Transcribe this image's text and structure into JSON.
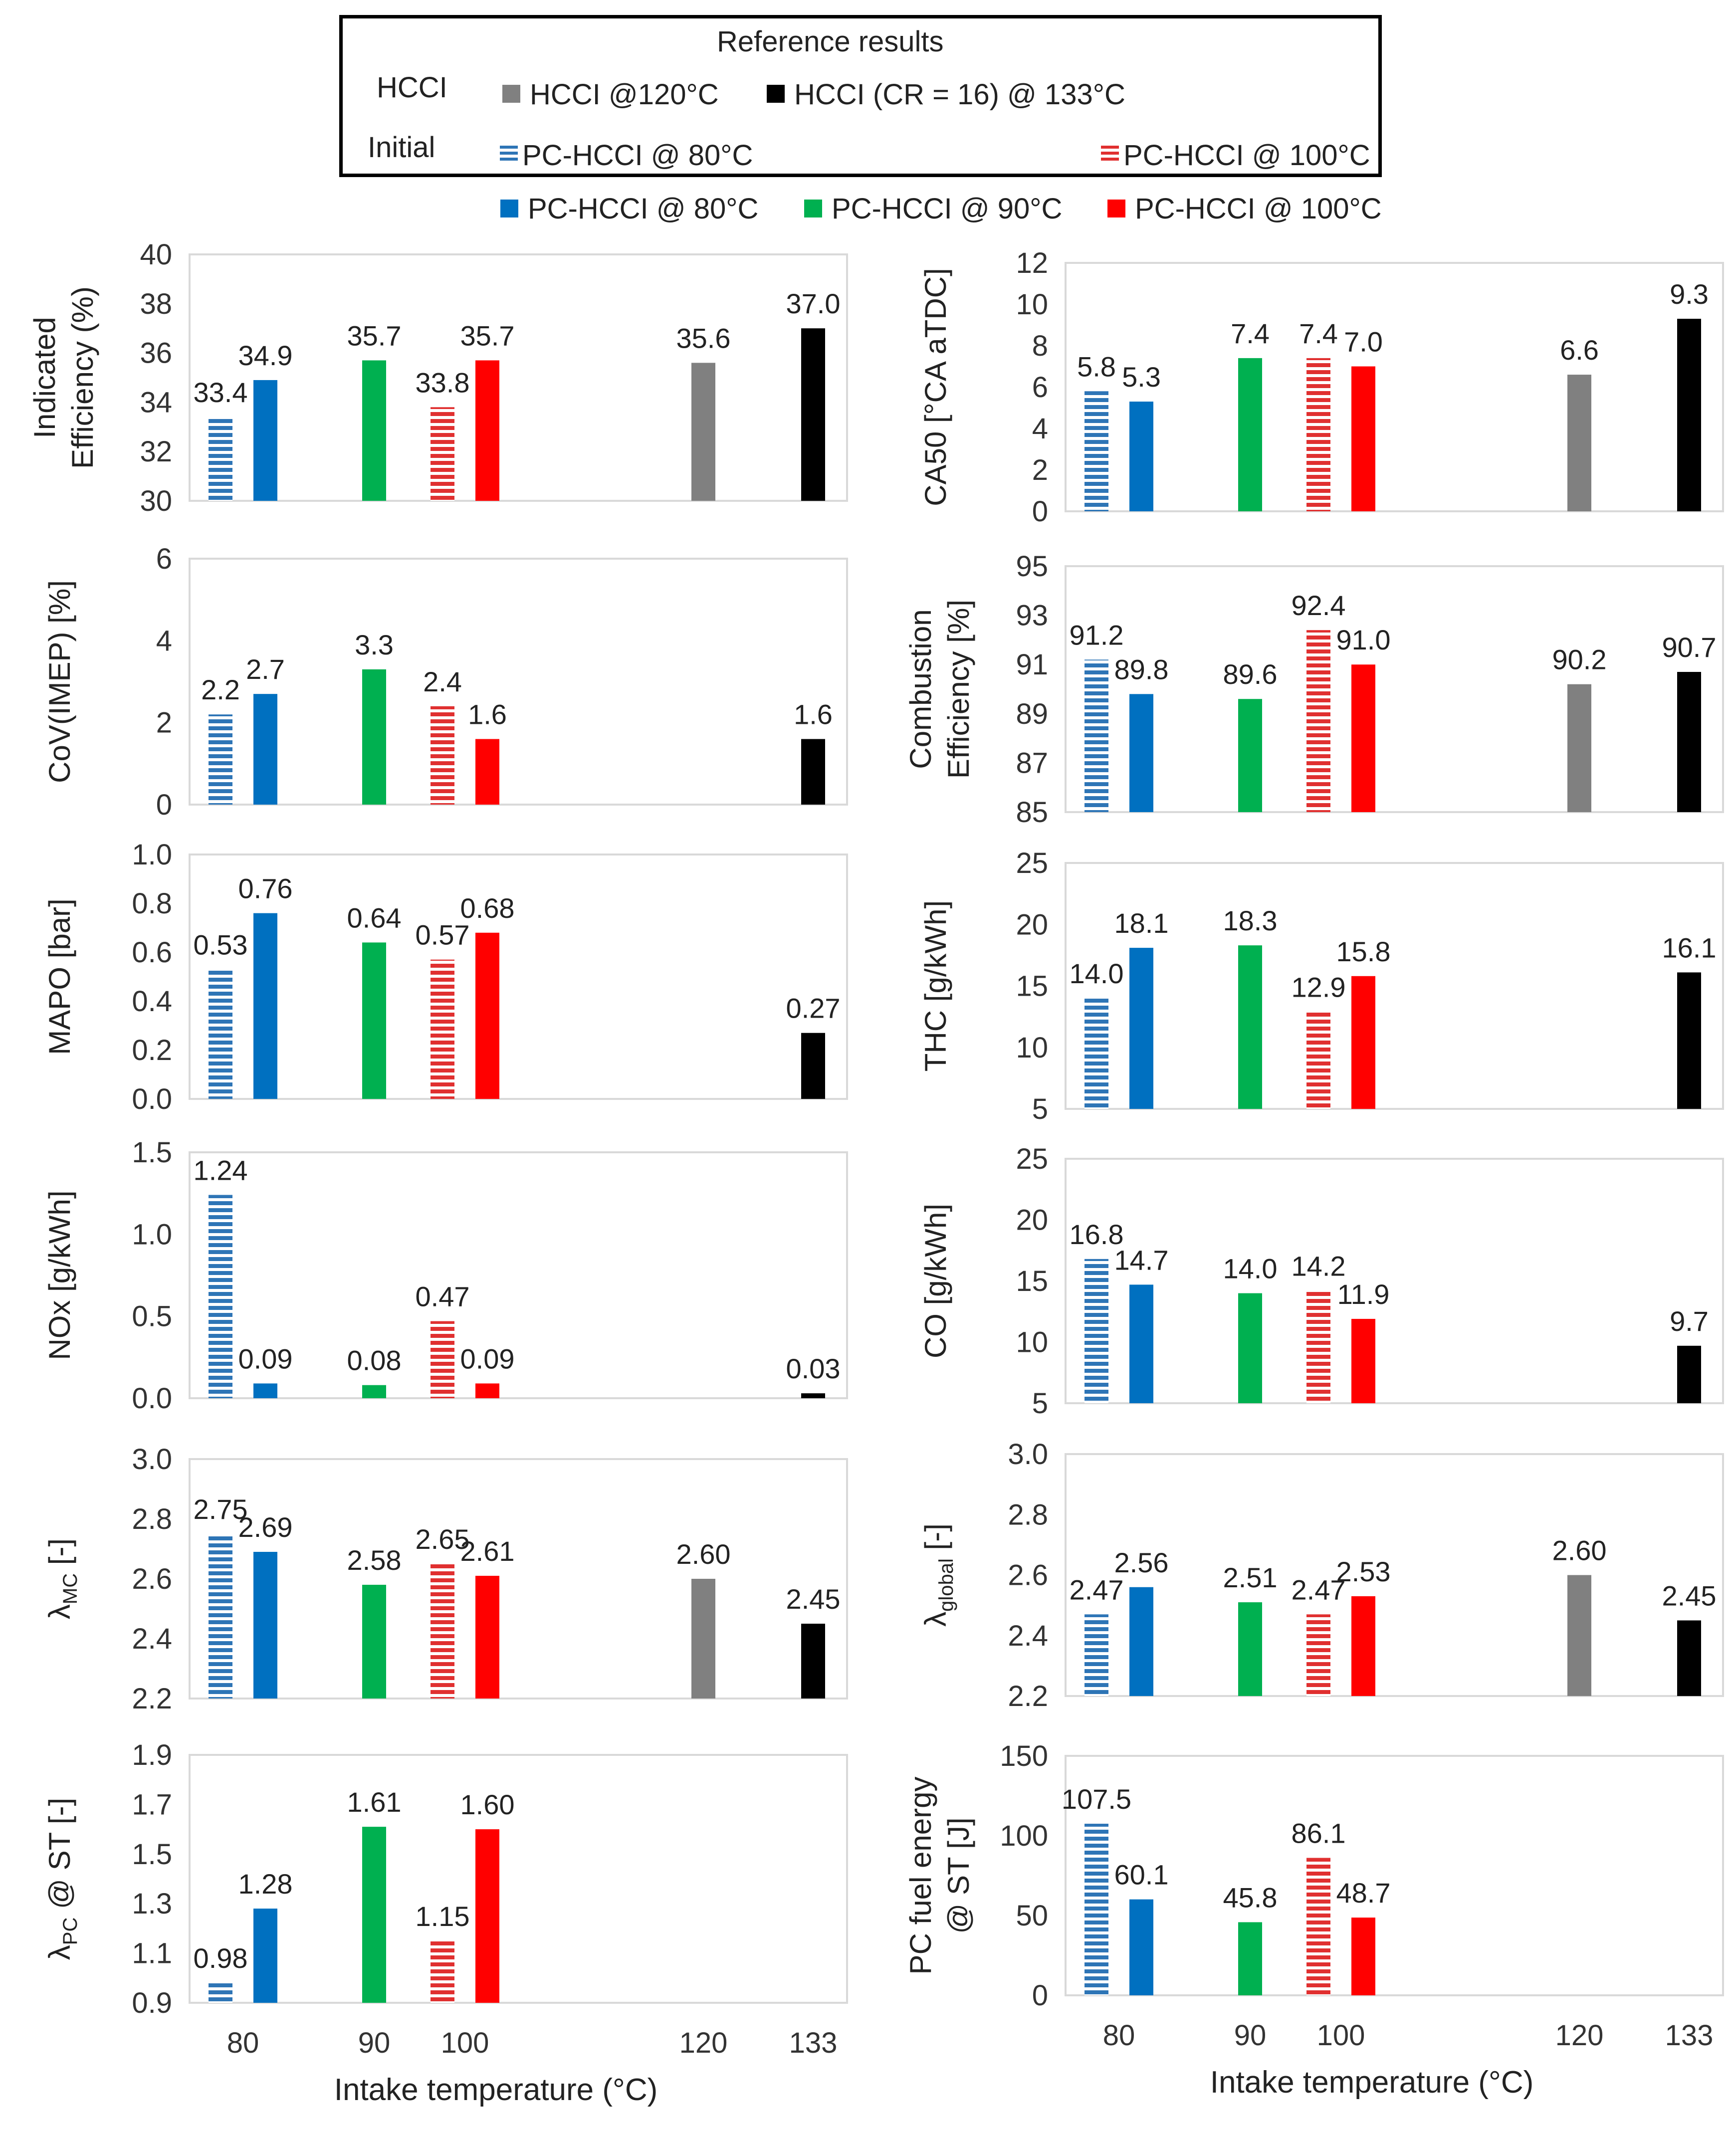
{
  "legend": {
    "title": "Reference results",
    "hcci_row_label": "HCCI",
    "initial_row_label": "Initial",
    "hcci_120": "HCCI @120°C",
    "hcci_133": "HCCI (CR = 16) @ 133°C",
    "init_80": "PC-HCCI @ 80°C",
    "init_100": "PC-HCCI @ 100°C",
    "pc_80": "PC-HCCI @ 80°C",
    "pc_90": "PC-HCCI @ 90°C",
    "pc_100": "PC-HCCI @ 100°C"
  },
  "colors": {
    "init80": "#2e75b6",
    "pc80": "#0070c0",
    "pc90": "#00b050",
    "init100": "#e03030",
    "pc100": "#ff0000",
    "hcci120": "#808080",
    "hcci133": "#000000",
    "axis": "#d9d9d9",
    "text": "#404040"
  },
  "x_axis": {
    "label": "Intake temperature (°C)",
    "ticks": [
      "80",
      "90",
      "100",
      "120",
      "133"
    ],
    "tick_values": [
      80,
      90,
      100,
      120,
      133
    ]
  },
  "chart_data": [
    {
      "type": "bar",
      "id": "eff",
      "ylabel": [
        "Indicated",
        "Efficiency (%)"
      ],
      "ylim": [
        30,
        40
      ],
      "yticks": [
        "30",
        "32",
        "34",
        "36",
        "38",
        "40"
      ],
      "bars": [
        {
          "series": "init80",
          "x": 80,
          "value": 33.4,
          "label": "33.4"
        },
        {
          "series": "pc80",
          "x": 80,
          "value": 34.9,
          "label": "34.9"
        },
        {
          "series": "pc90",
          "x": 90,
          "value": 35.7,
          "label": "35.7"
        },
        {
          "series": "init100",
          "x": 100,
          "value": 33.8,
          "label": "33.8"
        },
        {
          "series": "pc100",
          "x": 100,
          "value": 35.7,
          "label": "35.7"
        },
        {
          "series": "hcci120",
          "x": 120,
          "value": 35.6,
          "label": "35.6"
        },
        {
          "series": "hcci133",
          "x": 133,
          "value": 37.0,
          "label": "37.0"
        }
      ]
    },
    {
      "type": "bar",
      "id": "ca50",
      "ylabel": [
        "CA50 [°CA aTDC]"
      ],
      "ylim": [
        0,
        12
      ],
      "yticks": [
        "0",
        "2",
        "4",
        "6",
        "8",
        "10",
        "12"
      ],
      "bars": [
        {
          "series": "init80",
          "x": 80,
          "value": 5.8,
          "label": "5.8"
        },
        {
          "series": "pc80",
          "x": 80,
          "value": 5.3,
          "label": "5.3"
        },
        {
          "series": "pc90",
          "x": 90,
          "value": 7.4,
          "label": "7.4"
        },
        {
          "series": "init100",
          "x": 100,
          "value": 7.4,
          "label": "7.4"
        },
        {
          "series": "pc100",
          "x": 100,
          "value": 7.0,
          "label": "7.0"
        },
        {
          "series": "hcci120",
          "x": 120,
          "value": 6.6,
          "label": "6.6"
        },
        {
          "series": "hcci133",
          "x": 133,
          "value": 9.3,
          "label": "9.3"
        }
      ]
    },
    {
      "type": "bar",
      "id": "cov",
      "ylabel": [
        "CoV(IMEP) [%]"
      ],
      "ylim": [
        0,
        6
      ],
      "yticks": [
        "0",
        "2",
        "4",
        "6"
      ],
      "bars": [
        {
          "series": "init80",
          "x": 80,
          "value": 2.2,
          "label": "2.2"
        },
        {
          "series": "pc80",
          "x": 80,
          "value": 2.7,
          "label": "2.7"
        },
        {
          "series": "pc90",
          "x": 90,
          "value": 3.3,
          "label": "3.3"
        },
        {
          "series": "init100",
          "x": 100,
          "value": 2.4,
          "label": "2.4"
        },
        {
          "series": "pc100",
          "x": 100,
          "value": 1.6,
          "label": "1.6"
        },
        {
          "series": "hcci133",
          "x": 133,
          "value": 1.6,
          "label": "1.6"
        }
      ]
    },
    {
      "type": "bar",
      "id": "comb",
      "ylabel": [
        "Combustion",
        "Efficiency [%]"
      ],
      "ylim": [
        85,
        95
      ],
      "yticks": [
        "85",
        "87",
        "89",
        "91",
        "93",
        "95"
      ],
      "bars": [
        {
          "series": "init80",
          "x": 80,
          "value": 91.2,
          "label": "91.2"
        },
        {
          "series": "pc80",
          "x": 80,
          "value": 89.8,
          "label": "89.8"
        },
        {
          "series": "pc90",
          "x": 90,
          "value": 89.6,
          "label": "89.6"
        },
        {
          "series": "init100",
          "x": 100,
          "value": 92.4,
          "label": "92.4"
        },
        {
          "series": "pc100",
          "x": 100,
          "value": 91.0,
          "label": "91.0"
        },
        {
          "series": "hcci120",
          "x": 120,
          "value": 90.2,
          "label": "90.2"
        },
        {
          "series": "hcci133",
          "x": 133,
          "value": 90.7,
          "label": "90.7"
        }
      ]
    },
    {
      "type": "bar",
      "id": "mapo",
      "ylabel": [
        "MAPO [bar]"
      ],
      "ylim": [
        0,
        1
      ],
      "yticks": [
        "0.0",
        "0.2",
        "0.4",
        "0.6",
        "0.8",
        "1.0"
      ],
      "bars": [
        {
          "series": "init80",
          "x": 80,
          "value": 0.53,
          "label": "0.53"
        },
        {
          "series": "pc80",
          "x": 80,
          "value": 0.76,
          "label": "0.76"
        },
        {
          "series": "pc90",
          "x": 90,
          "value": 0.64,
          "label": "0.64"
        },
        {
          "series": "init100",
          "x": 100,
          "value": 0.57,
          "label": "0.57"
        },
        {
          "series": "pc100",
          "x": 100,
          "value": 0.68,
          "label": "0.68"
        },
        {
          "series": "hcci133",
          "x": 133,
          "value": 0.27,
          "label": "0.27"
        }
      ]
    },
    {
      "type": "bar",
      "id": "thc",
      "ylabel": [
        "THC [g/kWh]"
      ],
      "ylim": [
        5,
        25
      ],
      "yticks": [
        "5",
        "10",
        "15",
        "20",
        "25"
      ],
      "bars": [
        {
          "series": "init80",
          "x": 80,
          "value": 14.0,
          "label": "14.0"
        },
        {
          "series": "pc80",
          "x": 80,
          "value": 18.1,
          "label": "18.1"
        },
        {
          "series": "pc90",
          "x": 90,
          "value": 18.3,
          "label": "18.3"
        },
        {
          "series": "init100",
          "x": 100,
          "value": 12.9,
          "label": "12.9"
        },
        {
          "series": "pc100",
          "x": 100,
          "value": 15.8,
          "label": "15.8"
        },
        {
          "series": "hcci133",
          "x": 133,
          "value": 16.1,
          "label": "16.1"
        }
      ]
    },
    {
      "type": "bar",
      "id": "nox",
      "ylabel": [
        "NOx [g/kWh]"
      ],
      "ylim": [
        0,
        1.5
      ],
      "yticks": [
        "0.0",
        "0.5",
        "1.0",
        "1.5"
      ],
      "bars": [
        {
          "series": "init80",
          "x": 80,
          "value": 1.24,
          "label": "1.24"
        },
        {
          "series": "pc80",
          "x": 80,
          "value": 0.09,
          "label": "0.09"
        },
        {
          "series": "pc90",
          "x": 90,
          "value": 0.08,
          "label": "0.08"
        },
        {
          "series": "init100",
          "x": 100,
          "value": 0.47,
          "label": "0.47"
        },
        {
          "series": "pc100",
          "x": 100,
          "value": 0.09,
          "label": "0.09"
        },
        {
          "series": "hcci133",
          "x": 133,
          "value": 0.03,
          "label": "0.03"
        }
      ]
    },
    {
      "type": "bar",
      "id": "co",
      "ylabel": [
        "CO [g/kWh]"
      ],
      "ylim": [
        5,
        25
      ],
      "yticks": [
        "5",
        "10",
        "15",
        "20",
        "25"
      ],
      "bars": [
        {
          "series": "init80",
          "x": 80,
          "value": 16.8,
          "label": "16.8"
        },
        {
          "series": "pc80",
          "x": 80,
          "value": 14.7,
          "label": "14.7"
        },
        {
          "series": "pc90",
          "x": 90,
          "value": 14.0,
          "label": "14.0"
        },
        {
          "series": "init100",
          "x": 100,
          "value": 14.2,
          "label": "14.2"
        },
        {
          "series": "pc100",
          "x": 100,
          "value": 11.9,
          "label": "11.9"
        },
        {
          "series": "hcci133",
          "x": 133,
          "value": 9.7,
          "label": "9.7"
        }
      ]
    },
    {
      "type": "bar",
      "id": "lmc",
      "ylabel": [
        "λ",
        "MC",
        " [-]"
      ],
      "ylim": [
        2.2,
        3.0
      ],
      "yticks": [
        "2.2",
        "2.4",
        "2.6",
        "2.8",
        "3.0"
      ],
      "bars": [
        {
          "series": "init80",
          "x": 80,
          "value": 2.75,
          "label": "2.75"
        },
        {
          "series": "pc80",
          "x": 80,
          "value": 2.69,
          "label": "2.69"
        },
        {
          "series": "pc90",
          "x": 90,
          "value": 2.58,
          "label": "2.58"
        },
        {
          "series": "init100",
          "x": 100,
          "value": 2.65,
          "label": "2.65"
        },
        {
          "series": "pc100",
          "x": 100,
          "value": 2.61,
          "label": "2.61"
        },
        {
          "series": "hcci120",
          "x": 120,
          "value": 2.6,
          "label": "2.60"
        },
        {
          "series": "hcci133",
          "x": 133,
          "value": 2.45,
          "label": "2.45"
        }
      ]
    },
    {
      "type": "bar",
      "id": "lglobal",
      "ylabel": [
        "λ",
        "global",
        " [-]"
      ],
      "ylim": [
        2.2,
        3.0
      ],
      "yticks": [
        "2.2",
        "2.4",
        "2.6",
        "2.8",
        "3.0"
      ],
      "bars": [
        {
          "series": "init80",
          "x": 80,
          "value": 2.47,
          "label": "2.47"
        },
        {
          "series": "pc80",
          "x": 80,
          "value": 2.56,
          "label": "2.56"
        },
        {
          "series": "pc90",
          "x": 90,
          "value": 2.51,
          "label": "2.51"
        },
        {
          "series": "init100",
          "x": 100,
          "value": 2.47,
          "label": "2.47"
        },
        {
          "series": "pc100",
          "x": 100,
          "value": 2.53,
          "label": "2.53"
        },
        {
          "series": "hcci120",
          "x": 120,
          "value": 2.6,
          "label": "2.60"
        },
        {
          "series": "hcci133",
          "x": 133,
          "value": 2.45,
          "label": "2.45"
        }
      ]
    },
    {
      "type": "bar",
      "id": "lpc",
      "ylabel": [
        "λ",
        "PC",
        " @ ST [-]"
      ],
      "ylim": [
        0.9,
        1.9
      ],
      "yticks": [
        "0.9",
        "1.1",
        "1.3",
        "1.5",
        "1.7",
        "1.9"
      ],
      "bars": [
        {
          "series": "init80",
          "x": 80,
          "value": 0.98,
          "label": "0.98"
        },
        {
          "series": "pc80",
          "x": 80,
          "value": 1.28,
          "label": "1.28"
        },
        {
          "series": "pc90",
          "x": 90,
          "value": 1.61,
          "label": "1.61"
        },
        {
          "series": "init100",
          "x": 100,
          "value": 1.15,
          "label": "1.15"
        },
        {
          "series": "pc100",
          "x": 100,
          "value": 1.6,
          "label": "1.60"
        }
      ]
    },
    {
      "type": "bar",
      "id": "pcfuel",
      "ylabel": [
        "PC fuel energy",
        "@ ST [J]"
      ],
      "ylim": [
        0,
        150
      ],
      "yticks": [
        "0",
        "50",
        "100",
        "150"
      ],
      "bars": [
        {
          "series": "init80",
          "x": 80,
          "value": 107.5,
          "label": "107.5"
        },
        {
          "series": "pc80",
          "x": 80,
          "value": 60.1,
          "label": "60.1"
        },
        {
          "series": "pc90",
          "x": 90,
          "value": 45.8,
          "label": "45.8"
        },
        {
          "series": "init100",
          "x": 100,
          "value": 86.1,
          "label": "86.1"
        },
        {
          "series": "pc100",
          "x": 100,
          "value": 48.7,
          "label": "48.7"
        }
      ]
    }
  ]
}
